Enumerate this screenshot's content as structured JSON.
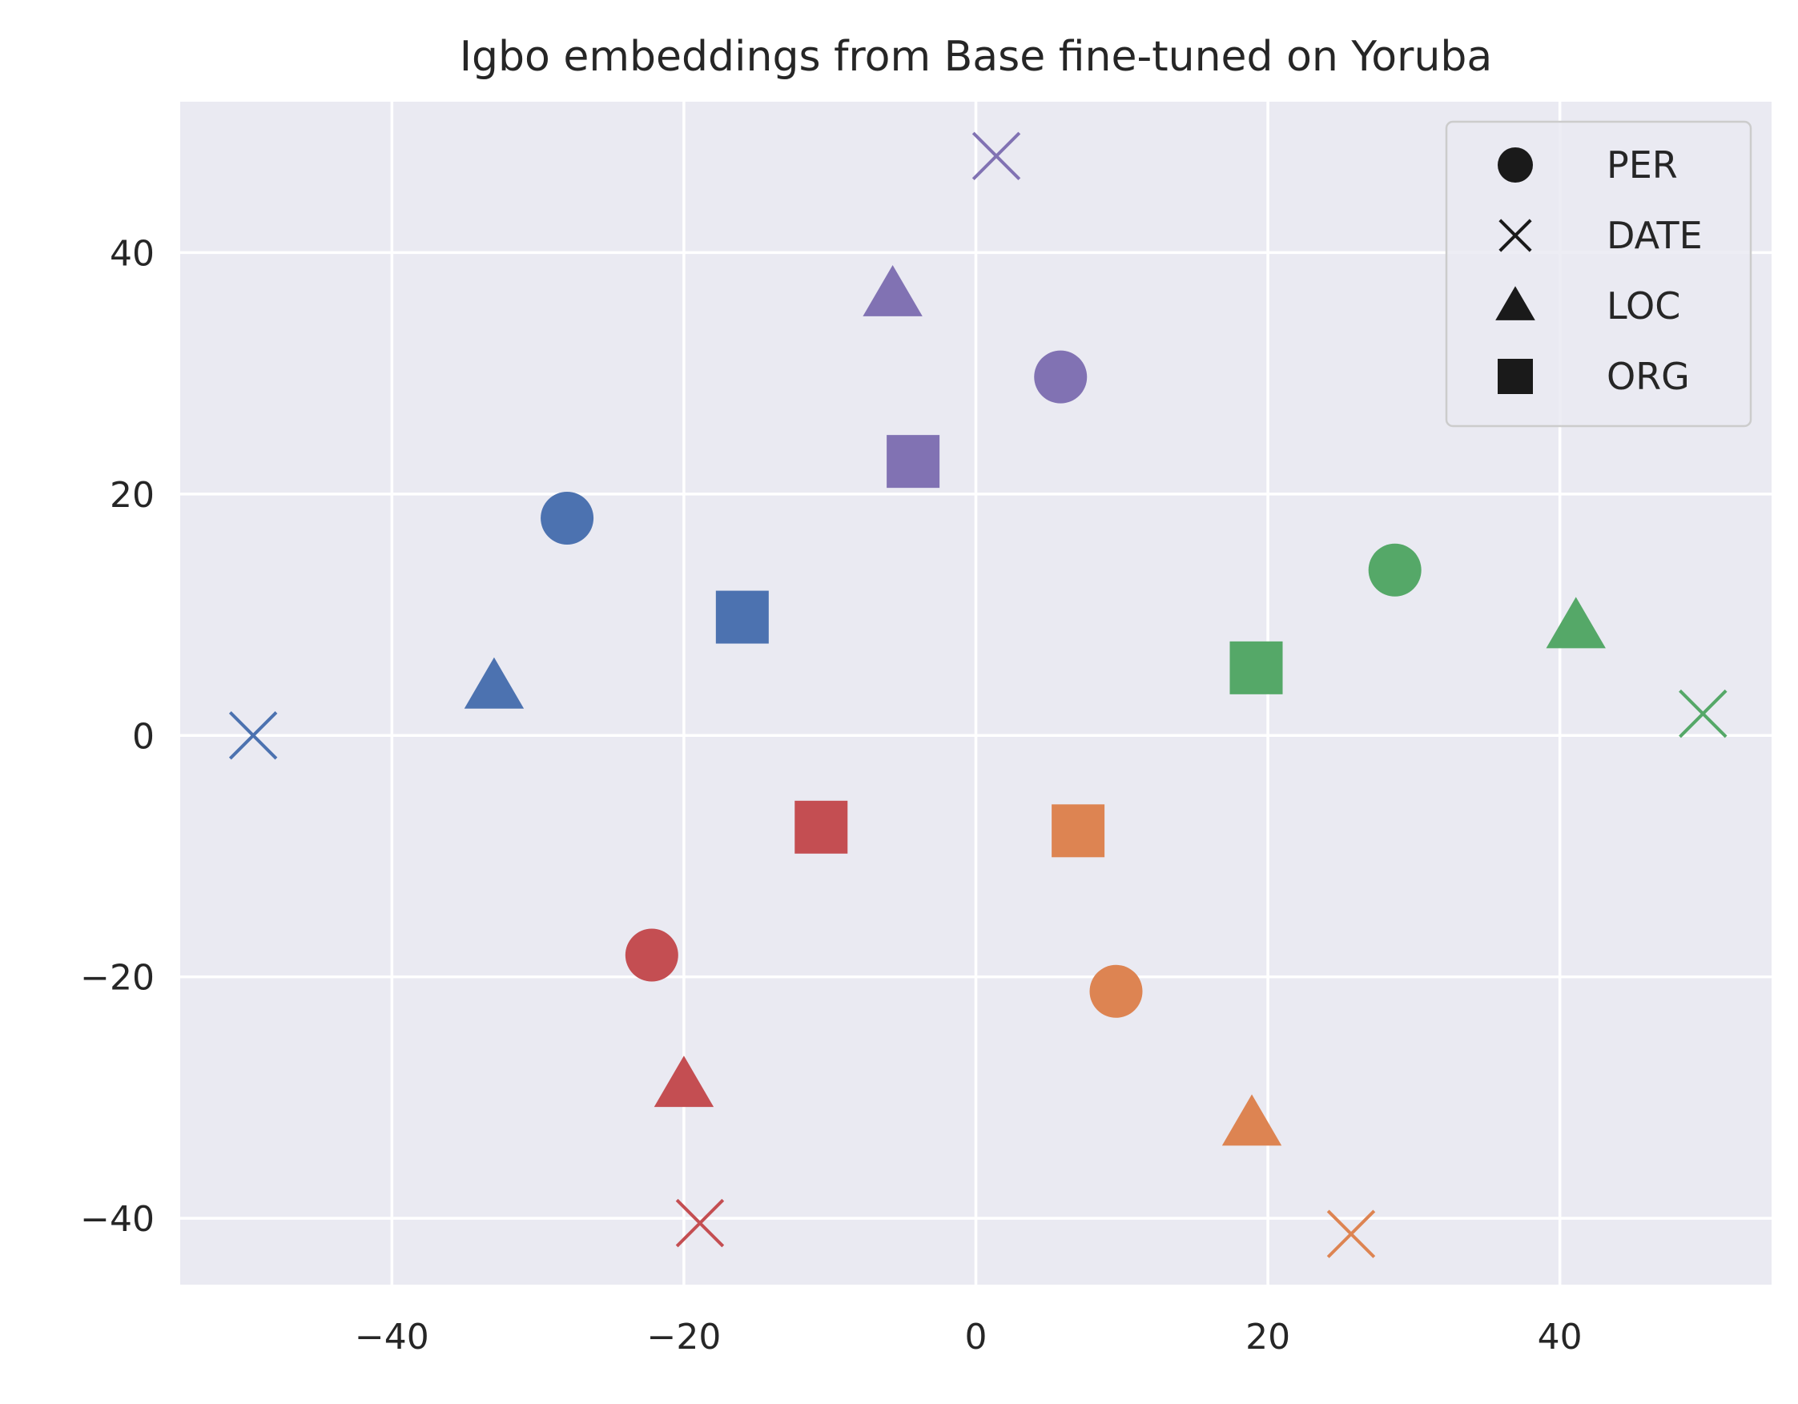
{
  "chart_data": {
    "type": "scatter",
    "title": "Igbo embeddings from Base fine-tuned on Yoruba",
    "xlabel": "",
    "ylabel": "",
    "xlim": [
      -54.5,
      54.5
    ],
    "ylim": [
      -45.5,
      52.5
    ],
    "xticks": [
      -40,
      -20,
      0,
      20,
      40
    ],
    "yticks": [
      -40,
      -20,
      0,
      20,
      40
    ],
    "xtick_labels": [
      "−40",
      "−20",
      "0",
      "20",
      "40"
    ],
    "ytick_labels": [
      "−40",
      "−20",
      "0",
      "20",
      "40"
    ],
    "grid": true,
    "legend_position": "top-right",
    "legend": [
      {
        "label": "PER",
        "marker": "circle"
      },
      {
        "label": "DATE",
        "marker": "x"
      },
      {
        "label": "LOC",
        "marker": "triangle"
      },
      {
        "label": "ORG",
        "marker": "square"
      }
    ],
    "colors": {
      "background": "#eaeaf2",
      "grid": "#ffffff",
      "blue": "#4c72b0",
      "orange": "#dd8452",
      "green": "#55a868",
      "red": "#c44e52",
      "purple": "#8172b3",
      "legend_marker": "#1a1a1a"
    },
    "points": [
      {
        "x": -28.0,
        "y": 18.0,
        "marker": "circle",
        "color": "blue"
      },
      {
        "x": -49.5,
        "y": 0.0,
        "marker": "x",
        "color": "blue"
      },
      {
        "x": -33.0,
        "y": 4.0,
        "marker": "triangle",
        "color": "blue"
      },
      {
        "x": -16.0,
        "y": 9.8,
        "marker": "square",
        "color": "blue"
      },
      {
        "x": 5.8,
        "y": 29.7,
        "marker": "circle",
        "color": "purple"
      },
      {
        "x": 1.4,
        "y": 48.0,
        "marker": "x",
        "color": "purple"
      },
      {
        "x": -5.7,
        "y": 36.5,
        "marker": "triangle",
        "color": "purple"
      },
      {
        "x": -4.3,
        "y": 22.7,
        "marker": "square",
        "color": "purple"
      },
      {
        "x": 28.7,
        "y": 13.7,
        "marker": "circle",
        "color": "green"
      },
      {
        "x": 49.8,
        "y": 1.8,
        "marker": "x",
        "color": "green"
      },
      {
        "x": 41.1,
        "y": 9.0,
        "marker": "triangle",
        "color": "green"
      },
      {
        "x": 19.2,
        "y": 5.6,
        "marker": "square",
        "color": "green"
      },
      {
        "x": -22.2,
        "y": -18.2,
        "marker": "circle",
        "color": "red"
      },
      {
        "x": -18.9,
        "y": -40.4,
        "marker": "x",
        "color": "red"
      },
      {
        "x": -20.0,
        "y": -29.0,
        "marker": "triangle",
        "color": "red"
      },
      {
        "x": -10.6,
        "y": -7.6,
        "marker": "square",
        "color": "red"
      },
      {
        "x": 9.6,
        "y": -21.2,
        "marker": "circle",
        "color": "orange"
      },
      {
        "x": 25.7,
        "y": -41.3,
        "marker": "x",
        "color": "orange"
      },
      {
        "x": 18.9,
        "y": -32.2,
        "marker": "triangle",
        "color": "orange"
      },
      {
        "x": 7.0,
        "y": -7.9,
        "marker": "square",
        "color": "orange"
      }
    ]
  }
}
